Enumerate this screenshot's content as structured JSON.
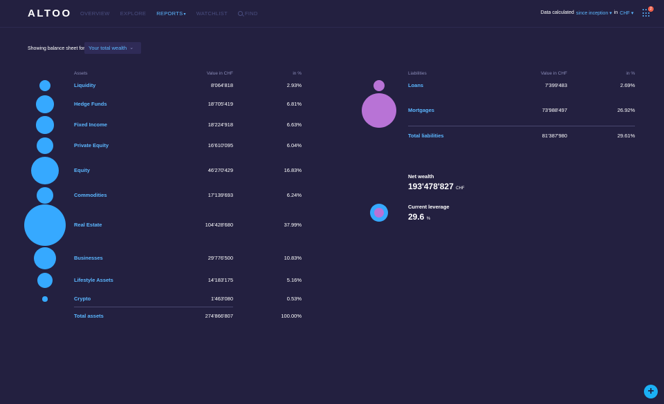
{
  "app": {
    "logo": "ALTOO"
  },
  "nav": {
    "items": [
      {
        "label": "OVERVIEW",
        "active": false
      },
      {
        "label": "EXPLORE",
        "active": false
      },
      {
        "label": "REPORTS",
        "active": true
      },
      {
        "label": "WATCHLIST",
        "active": false
      }
    ],
    "find_label": "FIND"
  },
  "header": {
    "calc_prefix": "Data calculated",
    "period": "since inception",
    "in_label": "in",
    "currency": "CHF",
    "notification_count": "2"
  },
  "filter": {
    "label": "Showing balance sheet for",
    "selected": "Your total wealth"
  },
  "assets": {
    "headers": {
      "name": "Assets",
      "value": "Value in CHF",
      "pct": "in %"
    },
    "rows": [
      {
        "label": "Liquidity",
        "value": "8'064'818",
        "pct": "2.93%",
        "share": 2.93
      },
      {
        "label": "Hedge Funds",
        "value": "18'705'419",
        "pct": "6.81%",
        "share": 6.81
      },
      {
        "label": "Fixed Income",
        "value": "18'224'918",
        "pct": "6.63%",
        "share": 6.63
      },
      {
        "label": "Private Equity",
        "value": "16'610'095",
        "pct": "6.04%",
        "share": 6.04
      },
      {
        "label": "Equity",
        "value": "46'270'429",
        "pct": "16.83%",
        "share": 16.83
      },
      {
        "label": "Commodities",
        "value": "17'139'693",
        "pct": "6.24%",
        "share": 6.24
      },
      {
        "label": "Real Estate",
        "value": "104'428'680",
        "pct": "37.99%",
        "share": 37.99
      },
      {
        "label": "Businesses",
        "value": "29'776'500",
        "pct": "10.83%",
        "share": 10.83
      },
      {
        "label": "Lifestyle Assets",
        "value": "14'183'175",
        "pct": "5.16%",
        "share": 5.16
      },
      {
        "label": "Crypto",
        "value": "1'463'080",
        "pct": "0.53%",
        "share": 0.53
      }
    ],
    "total": {
      "label": "Total assets",
      "value": "274'866'807",
      "pct": "100.00%"
    }
  },
  "liabilities": {
    "headers": {
      "name": "Liabilities",
      "value": "Value in CHF",
      "pct": "in %"
    },
    "rows": [
      {
        "label": "Loans",
        "value": "7'399'483",
        "pct": "2.69%",
        "share": 2.69
      },
      {
        "label": "Mortgages",
        "value": "73'988'497",
        "pct": "26.92%",
        "share": 26.92
      }
    ],
    "total": {
      "label": "Total liabilities",
      "value": "81'387'980",
      "pct": "29.61%"
    }
  },
  "net_wealth": {
    "label": "Net wealth",
    "value": "193'478'827",
    "unit": "CHF"
  },
  "leverage": {
    "label": "Current leverage",
    "value": "29.6",
    "unit": "%"
  },
  "colors": {
    "background": "#232040",
    "accent": "#5cb7ff",
    "asset_bubble": "#36a9ff",
    "liability_bubble": "#b873d6"
  },
  "icons": {
    "find": "search-icon",
    "apps": "grid-icon",
    "add": "plus-icon"
  }
}
